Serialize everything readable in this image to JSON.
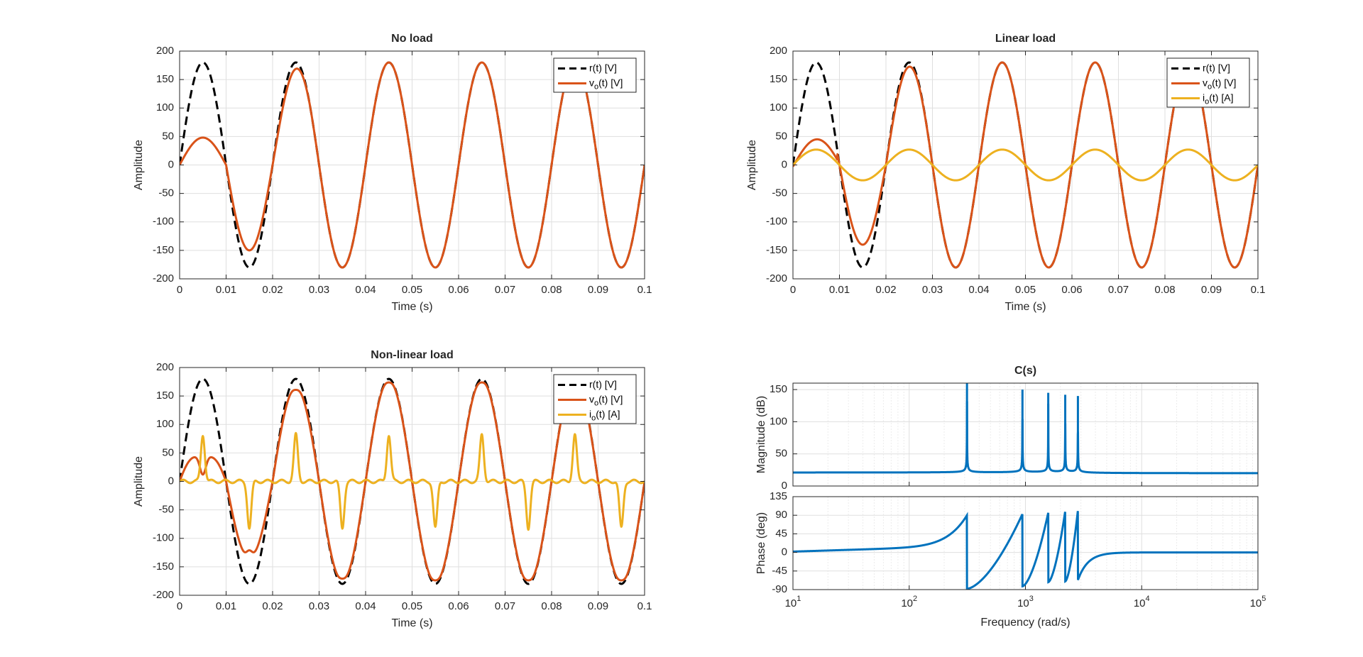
{
  "figure": {
    "background": "#ffffff"
  },
  "colors": {
    "ref": "#000000",
    "vo": "#D95319",
    "io": "#EDB120",
    "bode": "#0072BD",
    "grid": "#dfdfdf",
    "axis": "#262626"
  },
  "chart_data": [
    {
      "type": "line",
      "title": "No load",
      "xlabel": "Time (s)",
      "ylabel": "Amplitude",
      "xlim": [
        0,
        0.1
      ],
      "ylim": [
        -200,
        200
      ],
      "xticks": [
        0,
        0.01,
        0.02,
        0.03,
        0.04,
        0.05,
        0.06,
        0.07,
        0.08,
        0.09,
        0.1
      ],
      "xtick_labels": [
        "0",
        "0.01",
        "0.02",
        "0.03",
        "0.04",
        "0.05",
        "0.06",
        "0.07",
        "0.08",
        "0.09",
        "0.1"
      ],
      "yticks": [
        -200,
        -150,
        -100,
        -50,
        0,
        50,
        100,
        150,
        200
      ],
      "ytick_labels": [
        "-200",
        "-150",
        "-100",
        "-50",
        "0",
        "50",
        "100",
        "150",
        "200"
      ],
      "grid": true,
      "legend_position": "top-right",
      "series": [
        {
          "name": "r(t) [V]",
          "legend_main": "r(t) [V]",
          "legend_sub": "",
          "legend_rest": "",
          "color": "#000000",
          "dash": "dashed",
          "model": "ref",
          "amplitude": 180,
          "frequency_hz": 50
        },
        {
          "name": "vo(t) [V]",
          "legend_main": "v",
          "legend_sub": "o",
          "legend_rest": "(t) [V]",
          "color": "#D95319",
          "dash": "solid",
          "model": "vo_noload",
          "amplitude": 180,
          "frequency_hz": 50,
          "first_peak": 48
        }
      ]
    },
    {
      "type": "line",
      "title": "Linear load",
      "xlabel": "Time (s)",
      "ylabel": "Amplitude",
      "xlim": [
        0,
        0.1
      ],
      "ylim": [
        -200,
        200
      ],
      "xticks": [
        0,
        0.01,
        0.02,
        0.03,
        0.04,
        0.05,
        0.06,
        0.07,
        0.08,
        0.09,
        0.1
      ],
      "xtick_labels": [
        "0",
        "0.01",
        "0.02",
        "0.03",
        "0.04",
        "0.05",
        "0.06",
        "0.07",
        "0.08",
        "0.09",
        "0.1"
      ],
      "yticks": [
        -200,
        -150,
        -100,
        -50,
        0,
        50,
        100,
        150,
        200
      ],
      "ytick_labels": [
        "-200",
        "-150",
        "-100",
        "-50",
        "0",
        "50",
        "100",
        "150",
        "200"
      ],
      "grid": true,
      "legend_position": "top-right",
      "series": [
        {
          "name": "r(t) [V]",
          "legend_main": "r(t) [V]",
          "legend_sub": "",
          "legend_rest": "",
          "color": "#000000",
          "dash": "dashed",
          "model": "ref",
          "amplitude": 180,
          "frequency_hz": 50
        },
        {
          "name": "vo(t) [V]",
          "legend_main": "v",
          "legend_sub": "o",
          "legend_rest": "(t) [V]",
          "color": "#D95319",
          "dash": "solid",
          "model": "vo_linear",
          "amplitude": 180,
          "frequency_hz": 50,
          "first_peak": 45
        },
        {
          "name": "io(t) [A]",
          "legend_main": "i",
          "legend_sub": "o",
          "legend_rest": "(t) [A]",
          "color": "#EDB120",
          "dash": "solid",
          "model": "io_linear",
          "amplitude": 27,
          "frequency_hz": 50
        }
      ]
    },
    {
      "type": "line",
      "title": "Non-linear load",
      "xlabel": "Time (s)",
      "ylabel": "Amplitude",
      "xlim": [
        0,
        0.1
      ],
      "ylim": [
        -200,
        200
      ],
      "xticks": [
        0,
        0.01,
        0.02,
        0.03,
        0.04,
        0.05,
        0.06,
        0.07,
        0.08,
        0.09,
        0.1
      ],
      "xtick_labels": [
        "0",
        "0.01",
        "0.02",
        "0.03",
        "0.04",
        "0.05",
        "0.06",
        "0.07",
        "0.08",
        "0.09",
        "0.1"
      ],
      "yticks": [
        -200,
        -150,
        -100,
        -50,
        0,
        50,
        100,
        150,
        200
      ],
      "ytick_labels": [
        "-200",
        "-150",
        "-100",
        "-50",
        "0",
        "50",
        "100",
        "150",
        "200"
      ],
      "grid": true,
      "legend_position": "top-right",
      "series": [
        {
          "name": "r(t) [V]",
          "legend_main": "r(t) [V]",
          "legend_sub": "",
          "legend_rest": "",
          "color": "#000000",
          "dash": "dashed",
          "model": "ref",
          "amplitude": 180,
          "frequency_hz": 50
        },
        {
          "name": "vo(t) [V]",
          "legend_main": "v",
          "legend_sub": "o",
          "legend_rest": "(t) [V]",
          "color": "#D95319",
          "dash": "solid",
          "model": "vo_nonlinear",
          "amplitude": 178,
          "frequency_hz": 50
        },
        {
          "name": "io(t) [A]",
          "legend_main": "i",
          "legend_sub": "o",
          "legend_rest": "(t) [A]",
          "color": "#EDB120",
          "dash": "solid",
          "model": "io_pulses",
          "amplitude": 82,
          "frequency_hz": 50,
          "pulse_width_s": 0.0012
        }
      ]
    },
    {
      "type": "line",
      "subtype": "bode",
      "title": "C(s)",
      "xlabel": "Frequency  (rad/s)",
      "xscale": "log",
      "xlim": [
        10,
        100000
      ],
      "xticks": [
        10,
        100,
        1000,
        10000,
        100000
      ],
      "xtick_base": "10",
      "xtick_exponents": [
        "1",
        "2",
        "3",
        "4",
        "5"
      ],
      "color": "#0072BD",
      "resonances_rad_s": [
        314.16,
        942.48,
        1570.8,
        2199.1,
        2827.4
      ],
      "magnitude": {
        "ylabel": "Magnitude (dB)",
        "ylim": [
          0,
          160
        ],
        "yticks": [
          0,
          50,
          100,
          150
        ],
        "ytick_labels": [
          "0",
          "50",
          "100",
          "150"
        ],
        "baseline_db": 20,
        "peaks_db": [
          160,
          150,
          145,
          142,
          140
        ]
      },
      "phase": {
        "ylabel": "Phase (deg)",
        "ylim": [
          -90,
          135
        ],
        "yticks": [
          -90,
          -45,
          0,
          45,
          90,
          135
        ],
        "ytick_labels": [
          "-90",
          "-45",
          "0",
          "45",
          "90",
          "135"
        ],
        "segments": [
          {
            "from": 10,
            "to": 314.16,
            "start_deg": 2,
            "end_deg": 90
          },
          {
            "from": 314.16,
            "to": 942.48,
            "start_deg": -88,
            "end_deg": 93
          },
          {
            "from": 942.48,
            "to": 1570.8,
            "start_deg": -82,
            "end_deg": 96
          },
          {
            "from": 1570.8,
            "to": 2199.1,
            "start_deg": -72,
            "end_deg": 100
          },
          {
            "from": 2199.1,
            "to": 2827.4,
            "start_deg": -70,
            "end_deg": 102
          },
          {
            "from": 2827.4,
            "to": 100000,
            "start_deg": -67,
            "end_deg": 0
          }
        ]
      }
    }
  ]
}
